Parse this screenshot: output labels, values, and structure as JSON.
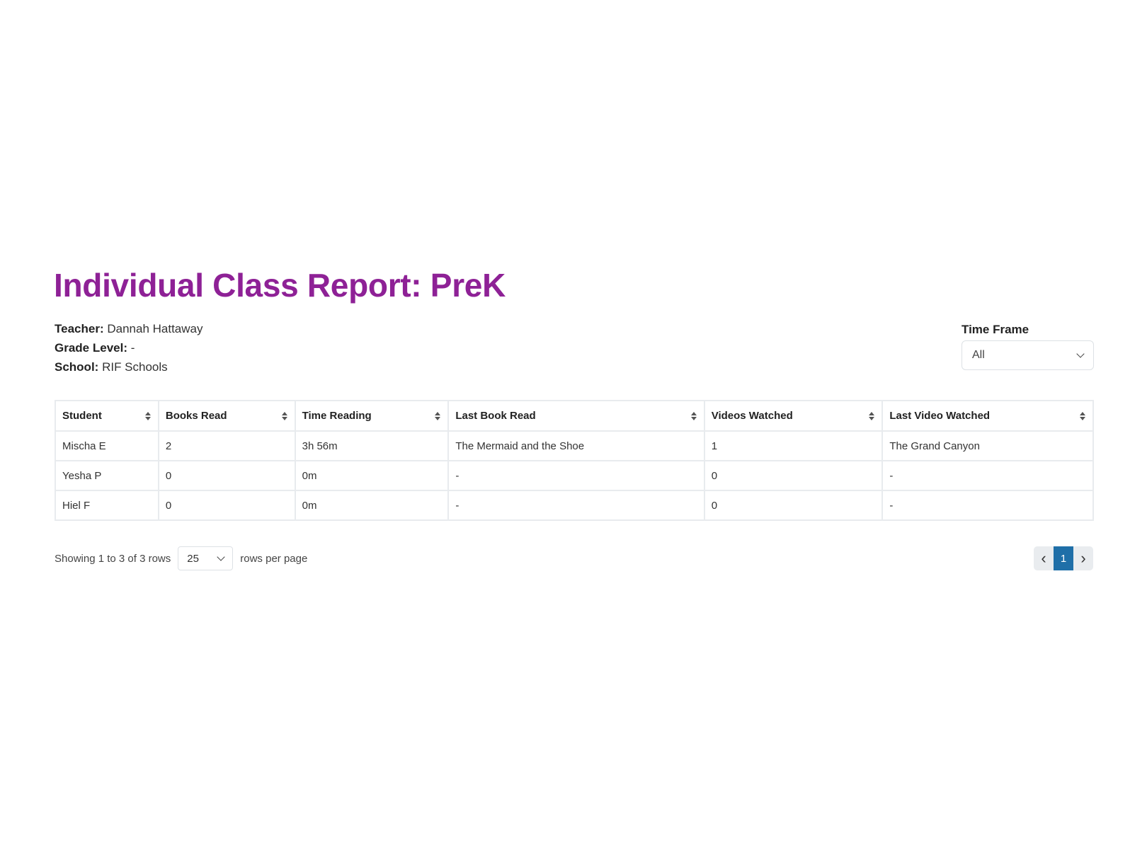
{
  "title": "Individual Class Report: PreK",
  "info": {
    "teacher_label": "Teacher:",
    "teacher": "Dannah Hattaway",
    "grade_label": "Grade Level:",
    "grade": "-",
    "school_label": "School:",
    "school": "RIF Schools"
  },
  "time_frame": {
    "label": "Time Frame",
    "value": "All"
  },
  "table": {
    "columns": [
      "Student",
      "Books Read",
      "Time Reading",
      "Last Book Read",
      "Videos Watched",
      "Last Video Watched"
    ],
    "rows": [
      [
        "Mischa E",
        "2",
        "3h 56m",
        "The Mermaid and the Shoe",
        "1",
        "The Grand Canyon"
      ],
      [
        "Yesha P",
        "0",
        "0m",
        "-",
        "0",
        "-"
      ],
      [
        "Hiel F",
        "0",
        "0m",
        "-",
        "0",
        "-"
      ]
    ]
  },
  "footer": {
    "showing": "Showing 1 to 3 of 3 rows",
    "page_size": "25",
    "rows_per_page": "rows per page"
  },
  "pagination": {
    "prev": "‹",
    "current": "1",
    "next": "›"
  },
  "colors": {
    "title": "#8e2196",
    "active_page": "#1f6fa8"
  }
}
